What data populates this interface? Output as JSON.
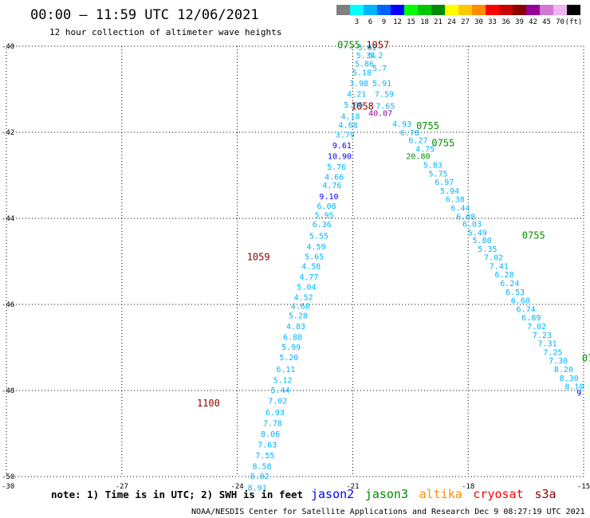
{
  "title": "00:00 – 11:59 UTC 12/06/2021",
  "subtitle": "12 hour collection of altimeter wave heights",
  "legend": {
    "unit": "(ft)",
    "swatches": [
      {
        "label": "",
        "color": "#808080"
      },
      {
        "label": "3",
        "color": "#00ffff"
      },
      {
        "label": "6",
        "color": "#00b4ff"
      },
      {
        "label": "9",
        "color": "#0064ff"
      },
      {
        "label": "12",
        "color": "#0000ff"
      },
      {
        "label": "15",
        "color": "#00ff00"
      },
      {
        "label": "18",
        "color": "#00c800"
      },
      {
        "label": "21",
        "color": "#008c00"
      },
      {
        "label": "24",
        "color": "#ffff00"
      },
      {
        "label": "27",
        "color": "#ffc800"
      },
      {
        "label": "30",
        "color": "#ff8c00"
      },
      {
        "label": "33",
        "color": "#ff0000"
      },
      {
        "label": "36",
        "color": "#c80000"
      },
      {
        "label": "39",
        "color": "#8c0000"
      },
      {
        "label": "42",
        "color": "#960096"
      },
      {
        "label": "45",
        "color": "#d278d2"
      },
      {
        "label": "70",
        "color": "#f0b4f0"
      },
      {
        "label": "",
        "color": "#000000"
      }
    ]
  },
  "note": "note:  1) Time is in UTC;  2) SWH is in feet",
  "satellites": [
    {
      "name": "jason2",
      "color": "#0000ff"
    },
    {
      "name": "jason3",
      "color": "#008c00"
    },
    {
      "name": "altika",
      "color": "#ff8c00"
    },
    {
      "name": "cryosat",
      "color": "#ff0000"
    },
    {
      "name": "s3a",
      "color": "#8c0000"
    }
  ],
  "footer": "NOAA/NESDIS Center for Satellite Applications and Research    Dec  9 08:27:19 UTC 2021",
  "chart_data": {
    "type": "scatter",
    "xlim": [
      -30,
      -15
    ],
    "ylim": [
      -50,
      -40
    ],
    "x_ticks": [
      "-27",
      "-24",
      "-21",
      "-18",
      "-15"
    ],
    "x_tick_values": [
      -27,
      -24,
      -21,
      -18,
      -15
    ],
    "y_ticks": [
      "-40",
      "-42",
      "-44",
      "-46",
      "-48",
      "-50"
    ],
    "y_tick_values": [
      -40,
      -42,
      -44,
      -46,
      -48,
      -50
    ],
    "x_origin_label": "-30",
    "grid": true,
    "track_a": {
      "color": "#00b4ff",
      "points": [
        {
          "lon": -20.62,
          "lat": -40.02,
          "swh": "5.62"
        },
        {
          "lon": -20.66,
          "lat": -40.2,
          "swh": "5.34"
        },
        {
          "lon": -20.7,
          "lat": -40.4,
          "swh": "5.86"
        },
        {
          "lon": -20.76,
          "lat": -40.6,
          "swh": "5.18"
        },
        {
          "lon": -20.84,
          "lat": -40.85,
          "swh": "3.98"
        },
        {
          "lon": -20.9,
          "lat": -41.1,
          "swh": "4.21"
        },
        {
          "lon": -20.98,
          "lat": -41.35,
          "swh": "5.06"
        },
        {
          "lon": -21.06,
          "lat": -41.62,
          "swh": "4.18"
        },
        {
          "lon": -21.12,
          "lat": -41.82,
          "swh": "4.68"
        },
        {
          "lon": -21.2,
          "lat": -42.05,
          "swh": "3.79"
        },
        {
          "lon": -21.28,
          "lat": -42.3,
          "swh": "9.61",
          "color": "#0000ff"
        },
        {
          "lon": -21.34,
          "lat": -42.55,
          "swh": "10.90",
          "color": "#0000ff"
        },
        {
          "lon": -21.42,
          "lat": -42.8,
          "swh": "5.76"
        },
        {
          "lon": -21.48,
          "lat": -43.03,
          "swh": "4.66"
        },
        {
          "lon": -21.54,
          "lat": -43.22,
          "swh": "4.76"
        },
        {
          "lon": -21.62,
          "lat": -43.48,
          "swh": "9.10",
          "color": "#0000ff"
        },
        {
          "lon": -21.68,
          "lat": -43.7,
          "swh": "6.08"
        },
        {
          "lon": -21.74,
          "lat": -43.92,
          "swh": "5.95"
        },
        {
          "lon": -21.8,
          "lat": -44.13,
          "swh": "6.36"
        },
        {
          "lon": -21.88,
          "lat": -44.4,
          "swh": "5.55"
        },
        {
          "lon": -21.95,
          "lat": -44.65,
          "swh": "4.59"
        },
        {
          "lon": -22.0,
          "lat": -44.88,
          "swh": "5.65"
        },
        {
          "lon": -22.08,
          "lat": -45.1,
          "swh": "4.58"
        },
        {
          "lon": -22.14,
          "lat": -45.35,
          "swh": "4.77"
        },
        {
          "lon": -22.2,
          "lat": -45.58,
          "swh": "5.04"
        },
        {
          "lon": -22.28,
          "lat": -45.82,
          "swh": "4.52"
        },
        {
          "lon": -22.36,
          "lat": -46.03,
          "swh": "4.68"
        },
        {
          "lon": -22.42,
          "lat": -46.25,
          "swh": "5.28"
        },
        {
          "lon": -22.48,
          "lat": -46.5,
          "swh": "4.83"
        },
        {
          "lon": -22.56,
          "lat": -46.75,
          "swh": "6.88"
        },
        {
          "lon": -22.6,
          "lat": -46.98,
          "swh": "5.99"
        },
        {
          "lon": -22.66,
          "lat": -47.22,
          "swh": "5.20"
        },
        {
          "lon": -22.74,
          "lat": -47.5,
          "swh": "6.11"
        },
        {
          "lon": -22.82,
          "lat": -47.75,
          "swh": "5.12"
        },
        {
          "lon": -22.88,
          "lat": -47.98,
          "swh": "5.44"
        },
        {
          "lon": -22.95,
          "lat": -48.23,
          "swh": "7.02"
        },
        {
          "lon": -23.02,
          "lat": -48.5,
          "swh": "6.93"
        },
        {
          "lon": -23.08,
          "lat": -48.75,
          "swh": "7.78"
        },
        {
          "lon": -23.14,
          "lat": -49.0,
          "swh": "8.06"
        },
        {
          "lon": -23.22,
          "lat": -49.25,
          "swh": "7.63"
        },
        {
          "lon": -23.28,
          "lat": -49.5,
          "swh": "7.55"
        },
        {
          "lon": -23.36,
          "lat": -49.75,
          "swh": "8.58"
        },
        {
          "lon": -23.42,
          "lat": -49.98,
          "swh": "8.02"
        },
        {
          "lon": -23.48,
          "lat": -50.25,
          "swh": "8.91"
        }
      ]
    },
    "track_b": {
      "color": "#00b4ff",
      "points": [
        {
          "lon": -20.4,
          "lat": -40.2,
          "swh": "5.2"
        },
        {
          "lon": -20.3,
          "lat": -40.5,
          "swh": "5.7"
        },
        {
          "lon": -20.24,
          "lat": -40.85,
          "swh": "5.91"
        },
        {
          "lon": -20.18,
          "lat": -41.1,
          "swh": "7.59"
        },
        {
          "lon": -20.15,
          "lat": -41.38,
          "swh": "7.65"
        },
        {
          "lon": -20.28,
          "lat": -41.55,
          "swh": "40.07",
          "color": "#960096"
        },
        {
          "lon": -19.72,
          "lat": -41.8,
          "swh": "4.93"
        },
        {
          "lon": -19.52,
          "lat": -42.0,
          "swh": "6.78"
        },
        {
          "lon": -19.3,
          "lat": -42.18,
          "swh": "6.27"
        },
        {
          "lon": -19.12,
          "lat": -42.38,
          "swh": "4.75"
        },
        {
          "lon": -19.3,
          "lat": -42.55,
          "swh": "20.80",
          "color": "#008c00"
        },
        {
          "lon": -18.92,
          "lat": -42.75,
          "swh": "5.83"
        },
        {
          "lon": -18.78,
          "lat": -42.95,
          "swh": "5.75"
        },
        {
          "lon": -18.62,
          "lat": -43.15,
          "swh": "6.97"
        },
        {
          "lon": -18.48,
          "lat": -43.35,
          "swh": "5.94"
        },
        {
          "lon": -18.34,
          "lat": -43.55,
          "swh": "6.38"
        },
        {
          "lon": -18.2,
          "lat": -43.75,
          "swh": "6.44"
        },
        {
          "lon": -18.06,
          "lat": -43.95,
          "swh": "6.08"
        },
        {
          "lon": -17.9,
          "lat": -44.12,
          "swh": "6.03"
        },
        {
          "lon": -17.76,
          "lat": -44.32,
          "swh": "5.49"
        },
        {
          "lon": -17.64,
          "lat": -44.5,
          "swh": "5.80"
        },
        {
          "lon": -17.5,
          "lat": -44.7,
          "swh": "5.35"
        },
        {
          "lon": -17.34,
          "lat": -44.9,
          "swh": "7.02"
        },
        {
          "lon": -17.2,
          "lat": -45.1,
          "swh": "7.41"
        },
        {
          "lon": -17.06,
          "lat": -45.3,
          "swh": "6.28"
        },
        {
          "lon": -16.92,
          "lat": -45.5,
          "swh": "6.24"
        },
        {
          "lon": -16.78,
          "lat": -45.7,
          "swh": "6.53"
        },
        {
          "lon": -16.64,
          "lat": -45.9,
          "swh": "6.60"
        },
        {
          "lon": -16.5,
          "lat": -46.1,
          "swh": "6.74"
        },
        {
          "lon": -16.36,
          "lat": -46.3,
          "swh": "6.89"
        },
        {
          "lon": -16.22,
          "lat": -46.5,
          "swh": "7.02"
        },
        {
          "lon": -16.08,
          "lat": -46.7,
          "swh": "7.23"
        },
        {
          "lon": -15.94,
          "lat": -46.9,
          "swh": "7.31"
        },
        {
          "lon": -15.8,
          "lat": -47.1,
          "swh": "7.25"
        },
        {
          "lon": -15.66,
          "lat": -47.3,
          "swh": "7.30"
        },
        {
          "lon": -15.52,
          "lat": -47.5,
          "swh": "8.20"
        },
        {
          "lon": -15.38,
          "lat": -47.7,
          "swh": "8.30"
        },
        {
          "lon": -15.24,
          "lat": -47.9,
          "swh": "8.10"
        },
        {
          "lon": -15.12,
          "lat": -48.05,
          "swh": "9",
          "color": "#0000ff"
        }
      ]
    },
    "time_labels": [
      {
        "text": "0755",
        "lon": -21.1,
        "lat": -39.97,
        "color": "#008c00"
      },
      {
        "text": "1057",
        "lon": -20.35,
        "lat": -39.97,
        "color": "#8c0000"
      },
      {
        "text": "1058",
        "lon": -20.75,
        "lat": -41.4,
        "color": "#8c0000"
      },
      {
        "text": "0755",
        "lon": -19.05,
        "lat": -41.85,
        "color": "#008c00"
      },
      {
        "text": "0755",
        "lon": -18.65,
        "lat": -42.25,
        "color": "#008c00"
      },
      {
        "text": "0755",
        "lon": -16.3,
        "lat": -44.4,
        "color": "#008c00"
      },
      {
        "text": "1059",
        "lon": -23.45,
        "lat": -44.9,
        "color": "#8c0000"
      },
      {
        "text": "075",
        "lon": -14.82,
        "lat": -47.25,
        "color": "#008c00"
      },
      {
        "text": "1100",
        "lon": -24.75,
        "lat": -48.3,
        "color": "#8c0000"
      }
    ]
  }
}
